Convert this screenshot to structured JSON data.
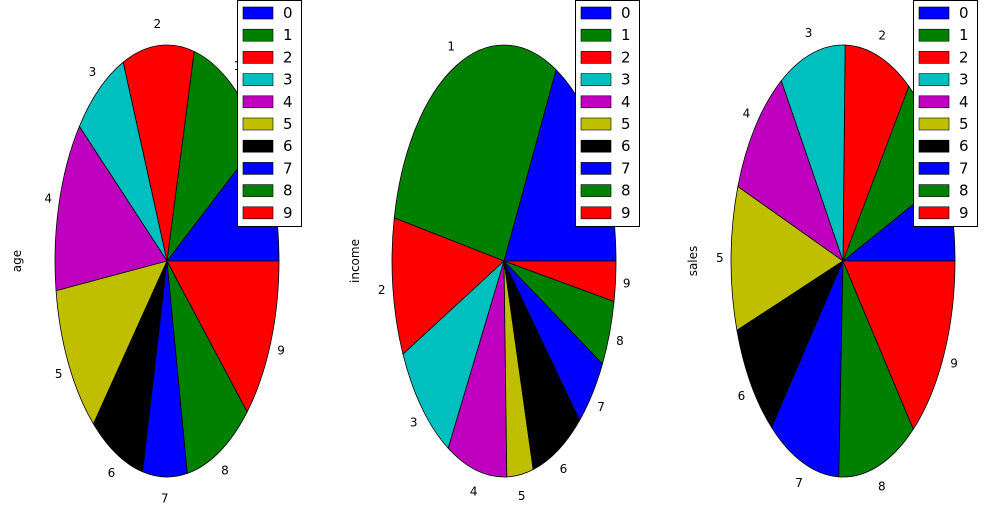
{
  "chart_data": [
    {
      "type": "pie",
      "ylabel": "age",
      "categories": [
        "0",
        "1",
        "2",
        "3",
        "4",
        "5",
        "6",
        "7",
        "8",
        "9"
      ],
      "values": [
        9.5,
        11.6,
        10.3,
        7.9,
        12.9,
        11.4,
        7.9,
        6.4,
        9.8,
        12.3
      ],
      "legend": [
        "0",
        "1",
        "2",
        "3",
        "4",
        "5",
        "6",
        "7",
        "8",
        "9"
      ],
      "legend_position": "top-right",
      "colors": [
        "#0000ff",
        "#008000",
        "#ff0000",
        "#00bfbf",
        "#bf00bf",
        "#bfbf00",
        "#000000",
        "#0000ff",
        "#008000",
        "#ff0000"
      ]
    },
    {
      "type": "pie",
      "ylabel": "income",
      "categories": [
        "0",
        "1",
        "2",
        "3",
        "4",
        "5",
        "6",
        "7",
        "8",
        "9"
      ],
      "values": [
        17.3,
        29.5,
        10.3,
        9.6,
        8.7,
        3.8,
        7.6,
        5.3,
        4.9,
        3.0
      ],
      "legend": [
        "0",
        "1",
        "2",
        "3",
        "4",
        "5",
        "6",
        "7",
        "8",
        "9"
      ],
      "legend_position": "top-right",
      "colors": [
        "#0000ff",
        "#008000",
        "#ff0000",
        "#00bfbf",
        "#bf00bf",
        "#bfbf00",
        "#000000",
        "#0000ff",
        "#008000",
        "#ff0000"
      ]
    },
    {
      "type": "pie",
      "ylabel": "sales",
      "categories": [
        "0",
        "1",
        "2",
        "3",
        "4",
        "5",
        "6",
        "7",
        "8",
        "9"
      ],
      "values": [
        6.3,
        8.7,
        9.7,
        9.6,
        10.1,
        10.8,
        8.8,
        10.4,
        11.4,
        14.2
      ],
      "legend": [
        "0",
        "1",
        "2",
        "3",
        "4",
        "5",
        "6",
        "7",
        "8",
        "9"
      ],
      "legend_position": "top-right",
      "colors": [
        "#0000ff",
        "#008000",
        "#ff0000",
        "#00bfbf",
        "#bf00bf",
        "#bfbf00",
        "#000000",
        "#0000ff",
        "#008000",
        "#ff0000"
      ]
    }
  ]
}
